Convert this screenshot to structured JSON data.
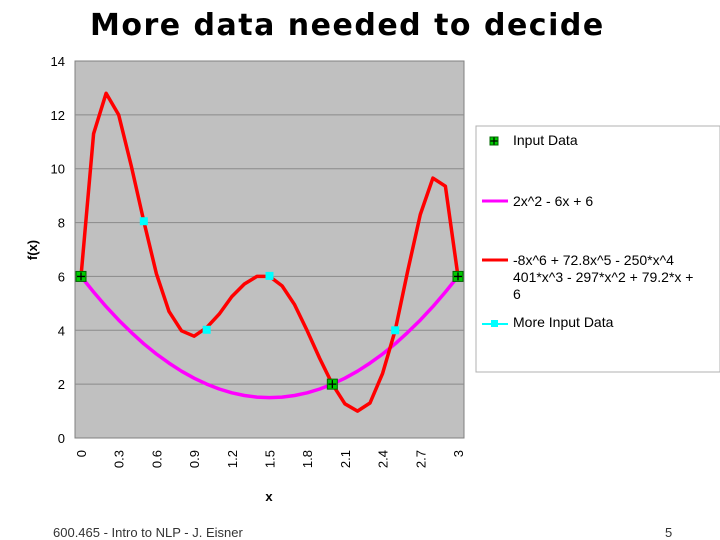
{
  "slide": {
    "title": "More data needed to decide",
    "footer": "600.465 - Intro to NLP - J. Eisner",
    "page_number": "5"
  },
  "chart_data": {
    "type": "line",
    "xlabel": "x",
    "ylabel": "f(x)",
    "ylim": [
      0,
      14
    ],
    "yticks": [
      "0",
      "2",
      "4",
      "6",
      "8",
      "10",
      "12",
      "14"
    ],
    "xlim": [
      0,
      3.1
    ],
    "xticks": [
      "0",
      "0.3",
      "0.6",
      "0.9",
      "1.2",
      "1.5",
      "1.8",
      "2.1",
      "2.4",
      "2.7",
      "3"
    ],
    "plot_background": "#c0c0c0",
    "grid": "horizontal",
    "legend_position": "right",
    "series": [
      {
        "name": "Input Data",
        "kind": "points",
        "marker": "green-square-plus",
        "color": "#00cc00",
        "x": [
          0,
          2,
          3
        ],
        "y": [
          6,
          2,
          6
        ]
      },
      {
        "name": "2x^2 - 6x + 6",
        "kind": "line",
        "color": "#ff00ff",
        "x": [
          0,
          0.1,
          0.2,
          0.3,
          0.4,
          0.5,
          0.6,
          0.7,
          0.8,
          0.9,
          1.0,
          1.1,
          1.2,
          1.3,
          1.4,
          1.5,
          1.6,
          1.7,
          1.8,
          1.9,
          2.0,
          2.1,
          2.2,
          2.3,
          2.4,
          2.5,
          2.6,
          2.7,
          2.8,
          2.9,
          3.0
        ],
        "y": [
          6.0,
          5.42,
          4.88,
          4.38,
          3.92,
          3.5,
          3.12,
          2.78,
          2.48,
          2.22,
          2.0,
          1.82,
          1.68,
          1.58,
          1.52,
          1.5,
          1.52,
          1.58,
          1.68,
          1.82,
          2.0,
          2.22,
          2.48,
          2.78,
          3.12,
          3.5,
          3.92,
          4.38,
          4.88,
          5.42,
          6.0
        ]
      },
      {
        "name": "-8x^6 + 72.8x^5 - 250*x^4 + 401*x^3 - 297*x^2 + 79.2*x + 6",
        "kind": "line",
        "color": "#ff0000",
        "x": [
          0,
          0.1,
          0.2,
          0.3,
          0.4,
          0.5,
          0.6,
          0.7,
          0.8,
          0.9,
          1.0,
          1.1,
          1.2,
          1.3,
          1.4,
          1.5,
          1.6,
          1.7,
          1.8,
          1.9,
          2.0,
          2.1,
          2.2,
          2.3,
          2.4,
          2.5,
          2.6,
          2.7,
          2.8,
          2.9,
          3.0
        ],
        "y": [
          6.0,
          11.3,
          12.8,
          12.0,
          10.1,
          8.05,
          6.1,
          4.7,
          3.98,
          3.78,
          4.1,
          4.6,
          5.25,
          5.72,
          6.0,
          6.0,
          5.65,
          4.95,
          3.98,
          2.95,
          2.0,
          1.27,
          1.0,
          1.3,
          2.4,
          4.0,
          6.2,
          8.3,
          9.65,
          9.35,
          6.0
        ]
      },
      {
        "name": "More Input Data",
        "kind": "points",
        "marker": "cyan-square",
        "color": "#00ffff",
        "x": [
          0.5,
          1.0,
          1.5,
          2.5
        ],
        "y": [
          8.05,
          4.02,
          6.02,
          4.0
        ]
      }
    ]
  }
}
